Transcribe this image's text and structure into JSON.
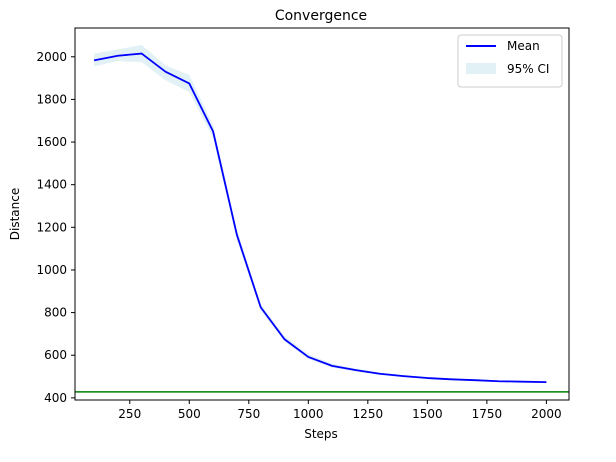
{
  "chart_data": {
    "type": "line",
    "title": "Convergence",
    "xlabel": "Steps",
    "ylabel": "Distance",
    "xlim": [
      20,
      2095
    ],
    "ylim": [
      390,
      2135
    ],
    "xticks": [
      250,
      500,
      750,
      1000,
      1250,
      1500,
      1750,
      2000
    ],
    "yticks": [
      400,
      600,
      800,
      1000,
      1200,
      1400,
      1600,
      1800,
      2000
    ],
    "grid": false,
    "legend_position": "top-right",
    "x": [
      100,
      200,
      300,
      400,
      500,
      600,
      700,
      800,
      900,
      1000,
      1100,
      1200,
      1300,
      1400,
      1500,
      1600,
      1700,
      1800,
      1900,
      2000
    ],
    "series": [
      {
        "name": "Mean",
        "color": "#0000ff",
        "values": [
          1983,
          2005,
          2015,
          1930,
          1875,
          1650,
          1165,
          825,
          675,
          592,
          550,
          530,
          513,
          502,
          493,
          487,
          483,
          478,
          476,
          474
        ]
      }
    ],
    "band": {
      "name": "95% CI",
      "color": "#add8e6",
      "lower": [
        1955,
        1980,
        1975,
        1890,
        1835,
        1620,
        1140,
        810,
        665,
        582,
        542,
        523,
        507,
        497,
        489,
        483,
        479,
        475,
        473,
        471
      ],
      "upper": [
        2015,
        2035,
        2055,
        1960,
        1915,
        1680,
        1190,
        840,
        690,
        605,
        560,
        537,
        519,
        508,
        498,
        492,
        488,
        482,
        479,
        477
      ]
    },
    "reference_line": {
      "y": 428,
      "color": "#008000"
    }
  }
}
